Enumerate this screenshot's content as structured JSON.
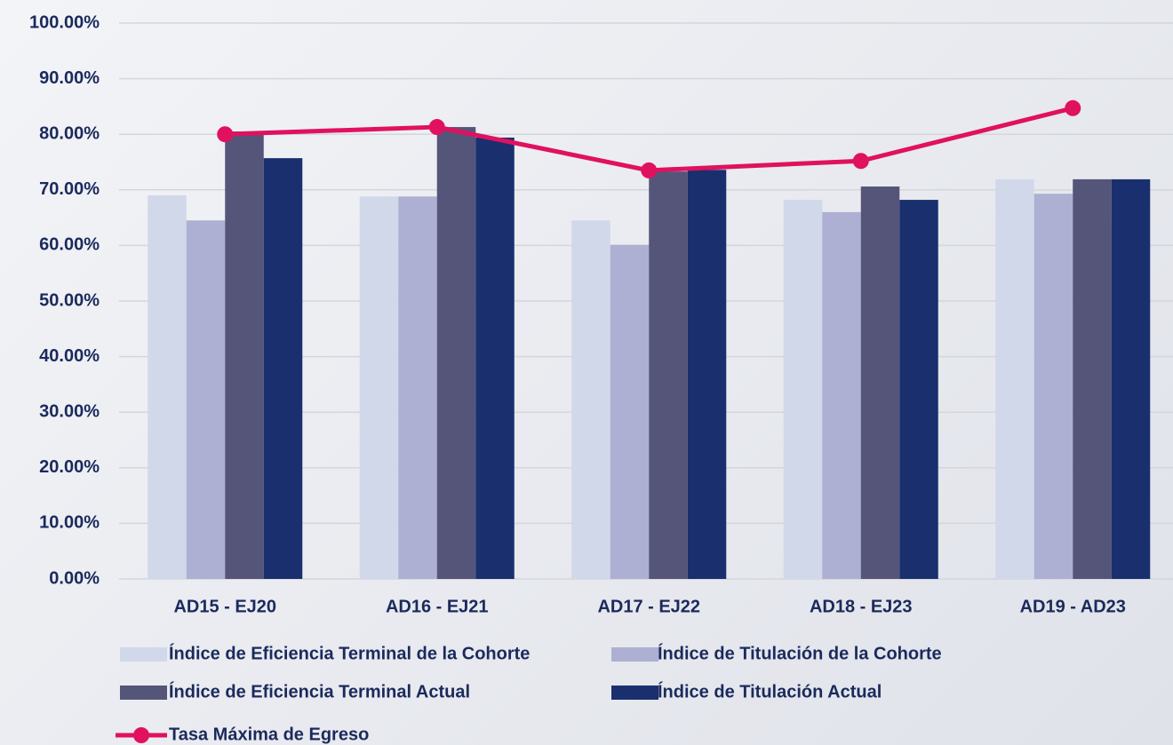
{
  "chart_data": {
    "type": "bar",
    "categories": [
      "AD15 - EJ20",
      "AD16 - EJ21",
      "AD17 - EJ22",
      "AD18 - EJ23",
      "AD19 - AD23"
    ],
    "series": [
      {
        "name": "Índice de Eficiencia Terminal de la Cohorte",
        "color": "#d0d8ea",
        "type": "bar",
        "values": [
          69.0,
          68.8,
          64.5,
          68.2,
          71.9
        ]
      },
      {
        "name": "Índice de Titulación de la Cohorte",
        "color": "#adb0d2",
        "type": "bar",
        "values": [
          64.5,
          68.8,
          60.1,
          66.0,
          69.3
        ]
      },
      {
        "name": "Índice de Eficiencia Terminal Actual",
        "color": "#55557a",
        "type": "bar",
        "values": [
          80.5,
          81.3,
          73.3,
          70.6,
          71.9
        ]
      },
      {
        "name": "Índice de Titulación Actual",
        "color": "#1a2f6e",
        "type": "bar",
        "values": [
          75.7,
          79.4,
          73.6,
          68.2,
          71.9
        ]
      },
      {
        "name": "Tasa Máxima de Egreso",
        "color": "#e0115f",
        "type": "line",
        "values": [
          80.0,
          81.3,
          73.5,
          75.2,
          84.7
        ]
      }
    ],
    "ylim": [
      0,
      100
    ],
    "yticks": [
      {
        "value": 0,
        "label": "0.00%"
      },
      {
        "value": 10,
        "label": "10.00%"
      },
      {
        "value": 20,
        "label": "20.00%"
      },
      {
        "value": 30,
        "label": "30.00%"
      },
      {
        "value": 40,
        "label": "40.00%"
      },
      {
        "value": 50,
        "label": "50.00%"
      },
      {
        "value": 60,
        "label": "60.00%"
      },
      {
        "value": 70,
        "label": "70.00%"
      },
      {
        "value": 80,
        "label": "80.00%"
      },
      {
        "value": 90,
        "label": "90.00%"
      },
      {
        "value": 100,
        "label": "100.00%"
      }
    ],
    "grid": true
  }
}
